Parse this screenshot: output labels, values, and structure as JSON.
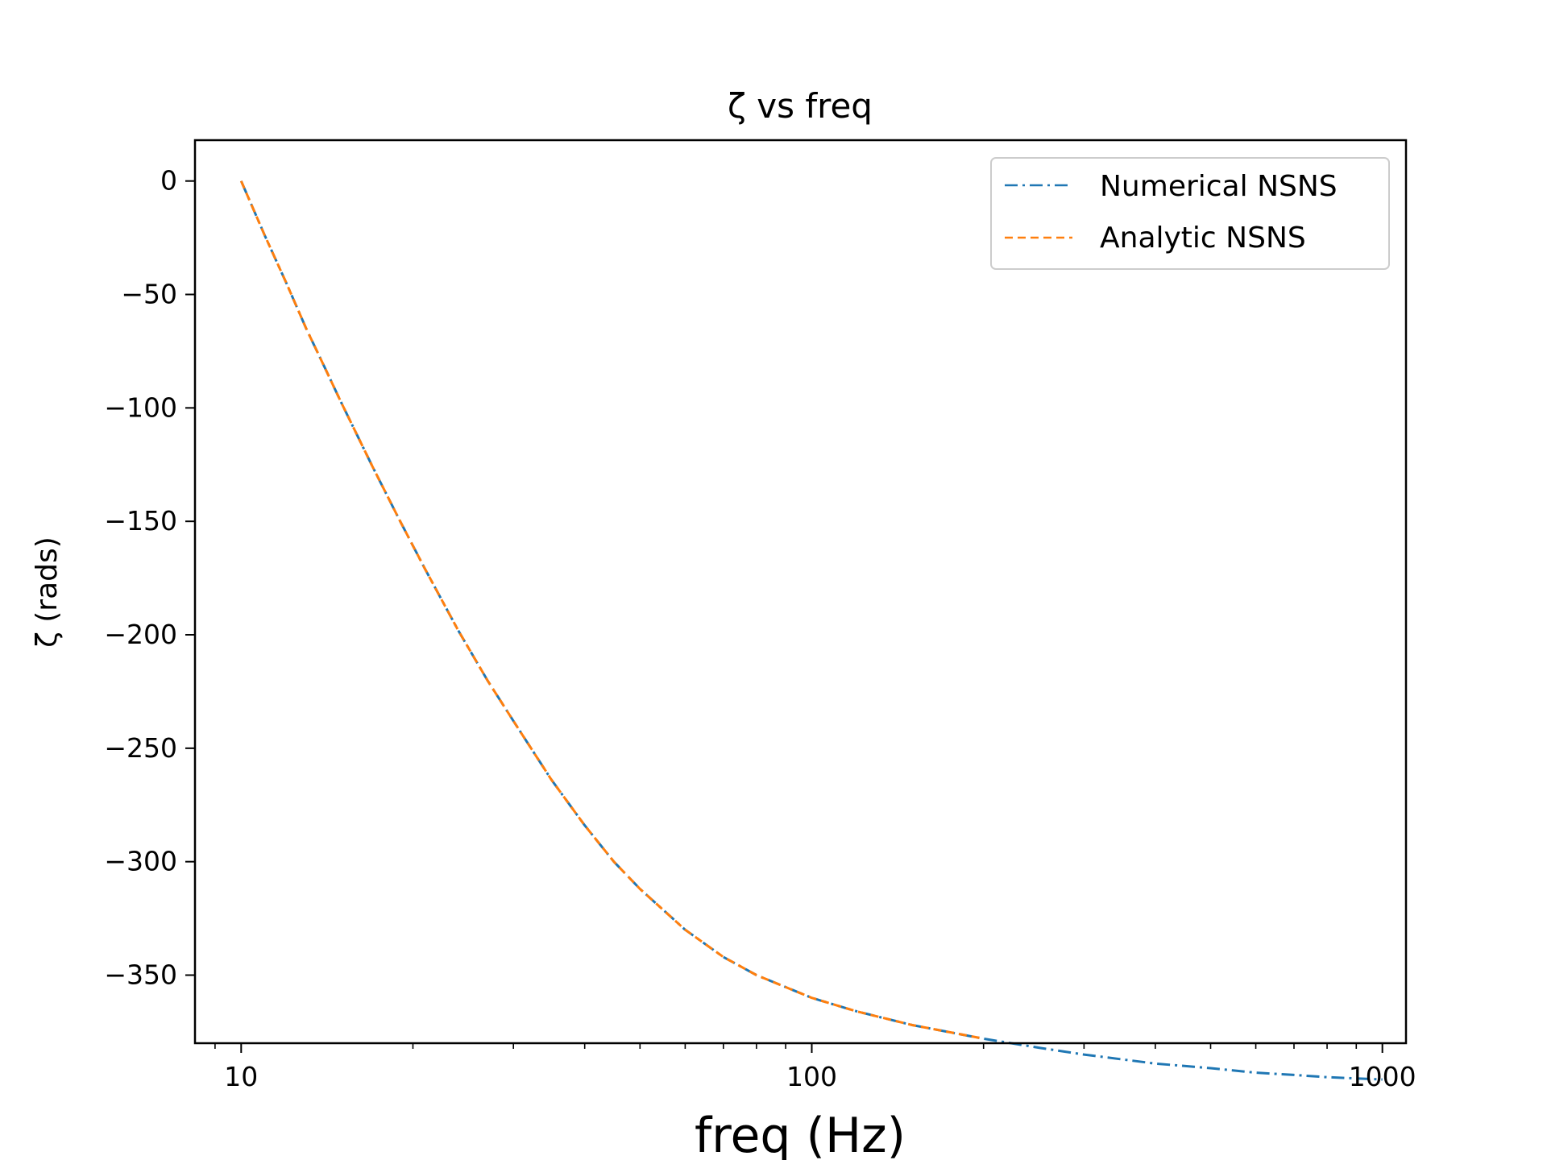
{
  "chart_data": {
    "type": "line",
    "title": "ζ vs freq",
    "xlabel": "freq (Hz)",
    "ylabel": "ζ (rads)",
    "xscale": "log",
    "xlim": [
      8.3,
      1100
    ],
    "ylim": [
      -380,
      18
    ],
    "xticks": [
      10,
      100,
      1000
    ],
    "xtick_labels": [
      "10",
      "100",
      "1000"
    ],
    "yticks": [
      0,
      -50,
      -100,
      -150,
      -200,
      -250,
      -300,
      -350
    ],
    "ytick_labels": [
      "0",
      "−50",
      "−100",
      "−150",
      "−200",
      "−250",
      "−300",
      "−350"
    ],
    "grid": false,
    "legend_position": "top-right",
    "series": [
      {
        "name": "Numerical NSNS",
        "color": "#1f77b4",
        "linestyle": "dashdot",
        "x": [
          10,
          11,
          12,
          13,
          14,
          15,
          17,
          19,
          21,
          24,
          27,
          30,
          35,
          40,
          45,
          50,
          60,
          70,
          80,
          100,
          120,
          150,
          200,
          250,
          300,
          400,
          500,
          600,
          700,
          800,
          1000
        ],
        "y": [
          0,
          -24,
          -45,
          -65,
          -82,
          -98,
          -126,
          -150,
          -171,
          -198,
          -220,
          -238,
          -264,
          -284,
          -300,
          -312,
          -330,
          -342,
          -350,
          -360,
          -366,
          -372,
          -378,
          -382,
          -385,
          -389,
          -391,
          -393,
          -394,
          -395,
          -396
        ]
      },
      {
        "name": "Analytic NSNS",
        "color": "#ff7f0e",
        "linestyle": "dashed",
        "x": [
          10,
          11,
          12,
          13,
          14,
          15,
          17,
          19,
          21,
          24,
          27,
          30,
          35,
          40,
          45,
          50,
          60,
          70,
          80,
          100,
          120,
          150,
          200
        ],
        "y": [
          0,
          -24,
          -45,
          -65,
          -82,
          -98,
          -126,
          -150,
          -171,
          -198,
          -220,
          -238,
          -264,
          -284,
          -300,
          -312,
          -330,
          -342,
          -350,
          -360,
          -366,
          -372,
          -378
        ]
      }
    ]
  }
}
